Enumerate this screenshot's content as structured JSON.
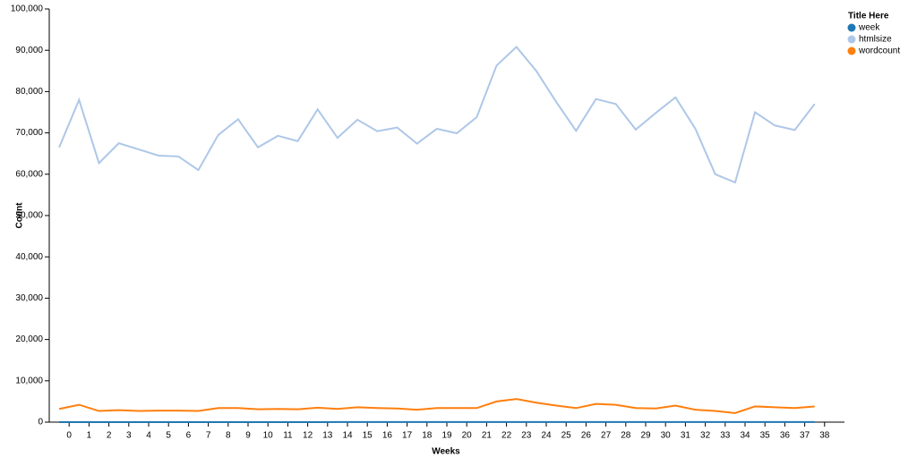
{
  "chart_data": {
    "type": "line",
    "xlabel": "Weeks",
    "ylabel": "Count",
    "legend_title": "Title Here",
    "legend_position": "top-right",
    "x": [
      -0.5,
      0.5,
      1.5,
      2.5,
      3.5,
      4.5,
      5.5,
      6.5,
      7.5,
      8.5,
      9.5,
      10.5,
      11.5,
      12.5,
      13.5,
      14.5,
      15.5,
      16.5,
      17.5,
      18.5,
      19.5,
      20.5,
      21.5,
      22.5,
      23.5,
      24.5,
      25.5,
      26.5,
      27.5,
      28.5,
      29.5,
      30.5,
      31.5,
      32.5,
      33.5,
      34.5,
      35.5,
      36.5,
      37.5
    ],
    "series": [
      {
        "name": "week",
        "color": "#1f77b4",
        "values": [
          0,
          1,
          2,
          3,
          4,
          5,
          6,
          7,
          8,
          9,
          10,
          11,
          12,
          13,
          14,
          15,
          16,
          17,
          18,
          19,
          20,
          21,
          22,
          23,
          24,
          25,
          26,
          27,
          28,
          29,
          30,
          31,
          32,
          33,
          34,
          35,
          36,
          37,
          38
        ]
      },
      {
        "name": "htmlsize",
        "color": "#aec7e8",
        "values": [
          66500,
          78000,
          62700,
          67500,
          66000,
          64500,
          64300,
          61000,
          69500,
          73300,
          66500,
          69300,
          68000,
          75700,
          68800,
          73200,
          70400,
          71300,
          67400,
          71000,
          69900,
          73800,
          86300,
          90800,
          85000,
          77500,
          70500,
          78200,
          77000,
          70800,
          74800,
          78600,
          71000,
          60000,
          58000,
          75000,
          71800,
          70700,
          77000
        ]
      },
      {
        "name": "wordcount",
        "color": "#ff7f0e",
        "values": [
          3200,
          4200,
          2700,
          2900,
          2700,
          2800,
          2800,
          2700,
          3400,
          3400,
          3100,
          3200,
          3100,
          3500,
          3200,
          3600,
          3400,
          3300,
          3000,
          3400,
          3400,
          3400,
          5000,
          5600,
          4700,
          4000,
          3400,
          4400,
          4200,
          3400,
          3300,
          4000,
          3000,
          2700,
          2200,
          3800,
          3600,
          3400,
          3800
        ]
      }
    ],
    "xlim": [
      -1,
      39
    ],
    "xticks": [
      0,
      1,
      2,
      3,
      4,
      5,
      6,
      7,
      8,
      9,
      10,
      11,
      12,
      13,
      14,
      15,
      16,
      17,
      18,
      19,
      20,
      21,
      22,
      23,
      24,
      25,
      26,
      27,
      28,
      29,
      30,
      31,
      32,
      33,
      34,
      35,
      36,
      37,
      38
    ],
    "ylim": [
      0,
      100000
    ],
    "yticks": [
      0,
      {
        "value": 10000,
        "label": "10,000"
      },
      {
        "value": 20000,
        "label": "20,000"
      },
      {
        "value": 30000,
        "label": "30,000"
      },
      {
        "value": 40000,
        "label": "40,000"
      },
      {
        "value": 50000,
        "label": "50,000"
      },
      {
        "value": 60000,
        "label": "60,000"
      },
      {
        "value": 70000,
        "label": "70,000"
      },
      {
        "value": 80000,
        "label": "80,000"
      },
      {
        "value": 90000,
        "label": "90,000"
      },
      {
        "value": 100000,
        "label": "100,000"
      }
    ],
    "grid": false
  }
}
